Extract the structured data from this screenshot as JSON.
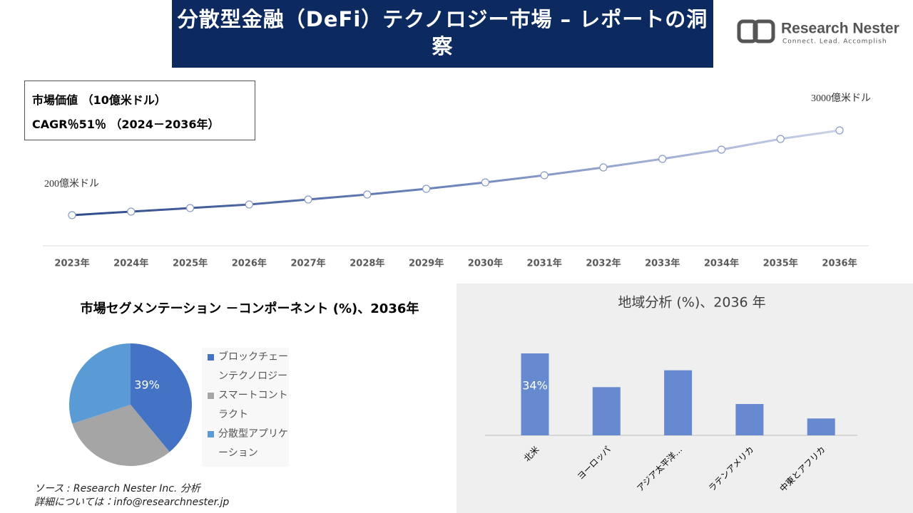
{
  "header": {
    "title": "分散型金融（DeFi）テクノロジー市場 – レポートの洞察",
    "logo_name": "Research Nester",
    "logo_tagline": "Connect. Lead. Accomplish"
  },
  "info_box": {
    "line1": "市場価値 （10億米ドル）",
    "line2": "CAGR％51％ （2024－2036年）"
  },
  "footer": {
    "source": "ソース : Research Nester Inc. 分析",
    "contact": "詳細については：info@researchnester.jp"
  },
  "chart_data": [
    {
      "type": "line",
      "categories": [
        "2023年",
        "2024年",
        "2025年",
        "2026年",
        "2027年",
        "2028年",
        "2029年",
        "2030年",
        "2031年",
        "2032年",
        "2033年",
        "2034年",
        "2035年",
        "2036年"
      ],
      "values": [
        200,
        318,
        435,
        553,
        718,
        882,
        1071,
        1282,
        1518,
        1776,
        2059,
        2365,
        2718,
        3000
      ],
      "value_labels": [
        "200億米ドル",
        null,
        null,
        null,
        null,
        null,
        null,
        null,
        null,
        null,
        null,
        null,
        null,
        "3000億米ドル"
      ],
      "color": "#2f4b8a"
    },
    {
      "type": "pie",
      "title": "市場セグメンテーション －コンポーネント (%)、2036年",
      "categories": [
        "ブロックチェーンテクノロジー",
        "スマートコントラクト",
        "分散型アプリケーション"
      ],
      "values": [
        39,
        31,
        30
      ],
      "value_labels": [
        "39%",
        null,
        null
      ],
      "colors": [
        "#4472c4",
        "#a5a5a5",
        "#5b9bd5"
      ]
    },
    {
      "type": "bar",
      "title": "地域分析 (%)、2036 年",
      "categories": [
        "北米",
        "ヨーロッパ",
        "アジア太平洋…",
        "ラテンアメリカ",
        "中東とアフリカ"
      ],
      "values": [
        34,
        20,
        27,
        13,
        7
      ],
      "value_labels": [
        "34%",
        null,
        null,
        null,
        null
      ],
      "color": "#6689cf"
    }
  ]
}
